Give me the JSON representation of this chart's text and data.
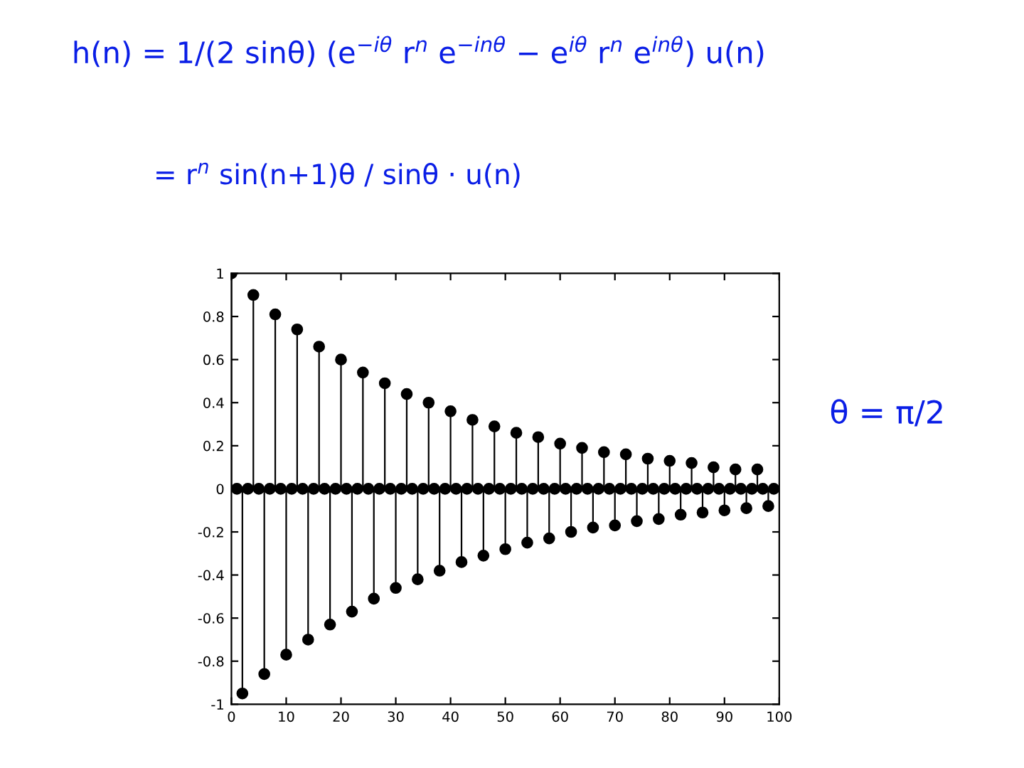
{
  "chart_data": {
    "type": "lollipop",
    "x": [
      0,
      1,
      2,
      3,
      4,
      5,
      6,
      7,
      8,
      9,
      10,
      11,
      12,
      13,
      14,
      15,
      16,
      17,
      18,
      19,
      20,
      21,
      22,
      23,
      24,
      25,
      26,
      27,
      28,
      29,
      30,
      31,
      32,
      33,
      34,
      35,
      36,
      37,
      38,
      39,
      40,
      41,
      42,
      43,
      44,
      45,
      46,
      47,
      48,
      49,
      50,
      51,
      52,
      53,
      54,
      55,
      56,
      57,
      58,
      59,
      60,
      61,
      62,
      63,
      64,
      65,
      66,
      67,
      68,
      69,
      70,
      71,
      72,
      73,
      74,
      75,
      76,
      77,
      78,
      79,
      80,
      81,
      82,
      83,
      84,
      85,
      86,
      87,
      88,
      89,
      90,
      91,
      92,
      93,
      94,
      95,
      96,
      97,
      98,
      99
    ],
    "series": [
      {
        "color": "#000000",
        "values": [
          1,
          0,
          -0.95,
          0,
          0.9,
          0,
          -0.86,
          0,
          0.81,
          0,
          -0.77,
          0,
          0.74,
          0,
          -0.7,
          0,
          0.66,
          0,
          -0.63,
          0,
          0.6,
          0,
          -0.57,
          0,
          0.54,
          0,
          -0.51,
          0,
          0.49,
          0,
          -0.46,
          0,
          0.44,
          0,
          -0.42,
          0,
          0.4,
          0,
          -0.38,
          0,
          0.36,
          0,
          -0.34,
          0,
          0.32,
          0,
          -0.31,
          0,
          0.29,
          0,
          -0.28,
          0,
          0.26,
          0,
          -0.25,
          0,
          0.24,
          0,
          -0.23,
          0,
          0.21,
          0,
          -0.2,
          0,
          0.19,
          0,
          -0.18,
          0,
          0.17,
          0,
          -0.17,
          0,
          0.16,
          0,
          -0.15,
          0,
          0.14,
          0,
          -0.14,
          0,
          0.13,
          0,
          -0.12,
          0,
          0.12,
          0,
          -0.11,
          0,
          0.1,
          0,
          -0.1,
          0,
          0.09,
          0,
          -0.09,
          0,
          0.09,
          0,
          -0.08,
          0
        ]
      }
    ],
    "xlim": [
      0,
      100
    ],
    "xticks": [
      0,
      10,
      20,
      30,
      40,
      50,
      60,
      70,
      80,
      90,
      100
    ],
    "ylim": [
      -1,
      1
    ],
    "yticks": [
      -1,
      -0.8,
      -0.6,
      -0.4,
      -0.2,
      0,
      0.2,
      0.4,
      0.6,
      0.8,
      1
    ],
    "marker": "circle",
    "grid": false,
    "annotations": [
      "h(n) = 1/(2 sinθ) (e$^{−iθ}$ r$^{n}$ e$^{−inθ}$ − e$^{iθ}$ r$^{n}$ e$^{inθ}$) u(n)",
      "= r$^{n}$ sin(n+1)θ / sinθ · u(n)",
      "θ = π/2"
    ]
  }
}
